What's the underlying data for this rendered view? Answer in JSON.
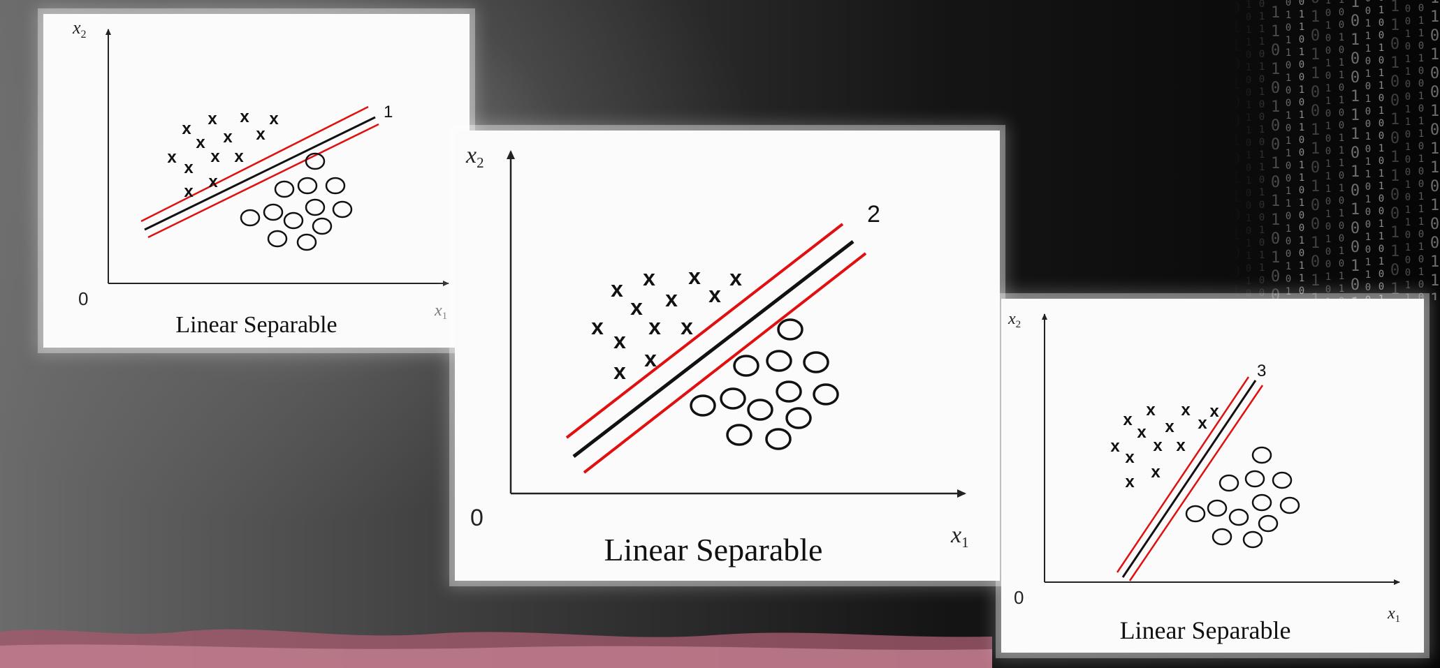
{
  "colors": {
    "separator": "#111111",
    "margin": "#e01010",
    "marker": "#111111",
    "panel_bg": "#fbfbfb"
  },
  "decoration": {
    "binary_glyphs": "0110100101101001110101001011010010110"
  },
  "panels": [
    {
      "caption": "Linear Separable",
      "x_axis_label": "x1",
      "y_axis_label": "x2",
      "origin_label": "0",
      "line_label": "1",
      "class_x_marker": "x",
      "class_o_marker": "circle"
    },
    {
      "caption": "Linear Separable",
      "x_axis_label": "x1",
      "y_axis_label": "x2",
      "origin_label": "0",
      "line_label": "2",
      "class_x_marker": "x",
      "class_o_marker": "circle"
    },
    {
      "caption": "Linear Separable",
      "x_axis_label": "x1",
      "y_axis_label": "x2",
      "origin_label": "0",
      "line_label": "3",
      "class_x_marker": "x",
      "class_o_marker": "circle"
    }
  ]
}
